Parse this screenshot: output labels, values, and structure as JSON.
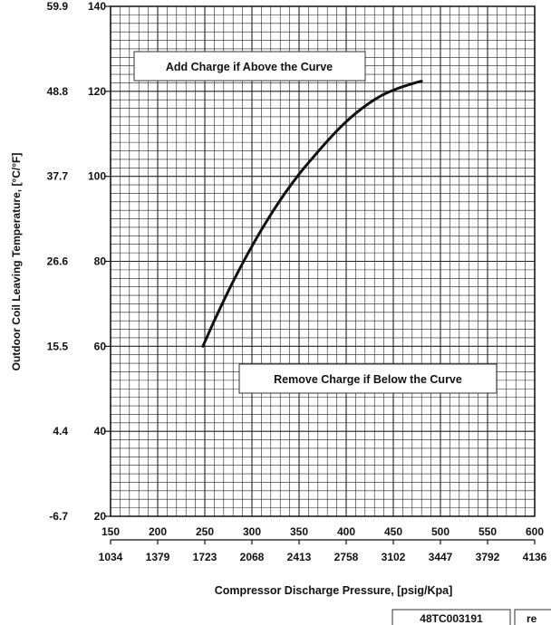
{
  "chart_data": {
    "type": "line",
    "title": "",
    "xlabel": "Compressor Discharge Pressure, [psig/Kpa]",
    "ylabel": "Outdoor Coil Leaving Temperature, [°C/°F]",
    "xlim": [
      150,
      600
    ],
    "ylim": [
      20,
      140
    ],
    "grid": true,
    "x_ticks_psig": [
      "150",
      "200",
      "250",
      "300",
      "350",
      "400",
      "450",
      "500",
      "550",
      "600"
    ],
    "x_ticks_kpa": [
      "1034",
      "1379",
      "1723",
      "2068",
      "2413",
      "2758",
      "3102",
      "3447",
      "3792",
      "4136"
    ],
    "y_ticks_f": [
      "20",
      "40",
      "60",
      "80",
      "100",
      "120",
      "140"
    ],
    "y_ticks_c": [
      "-6.7",
      "4.4",
      "15.5",
      "26.6",
      "37.7",
      "48.8",
      "59.9"
    ],
    "series": [
      {
        "x": [
          248,
          260,
          275,
          290,
          305,
          320,
          335,
          350,
          365,
          380,
          395,
          410,
          425,
          440,
          455,
          470,
          480
        ],
        "y": [
          60.0,
          66.0,
          73.0,
          79.5,
          85.5,
          91.0,
          96.0,
          100.5,
          104.5,
          108.3,
          111.8,
          114.8,
          117.3,
          119.3,
          120.7,
          121.8,
          122.4
        ]
      }
    ],
    "annotations": [
      "Add Charge if Above the Curve",
      "Remove Charge if Below the Curve"
    ]
  },
  "footer": {
    "doc_id": "48TC003191",
    "rev": "re"
  }
}
